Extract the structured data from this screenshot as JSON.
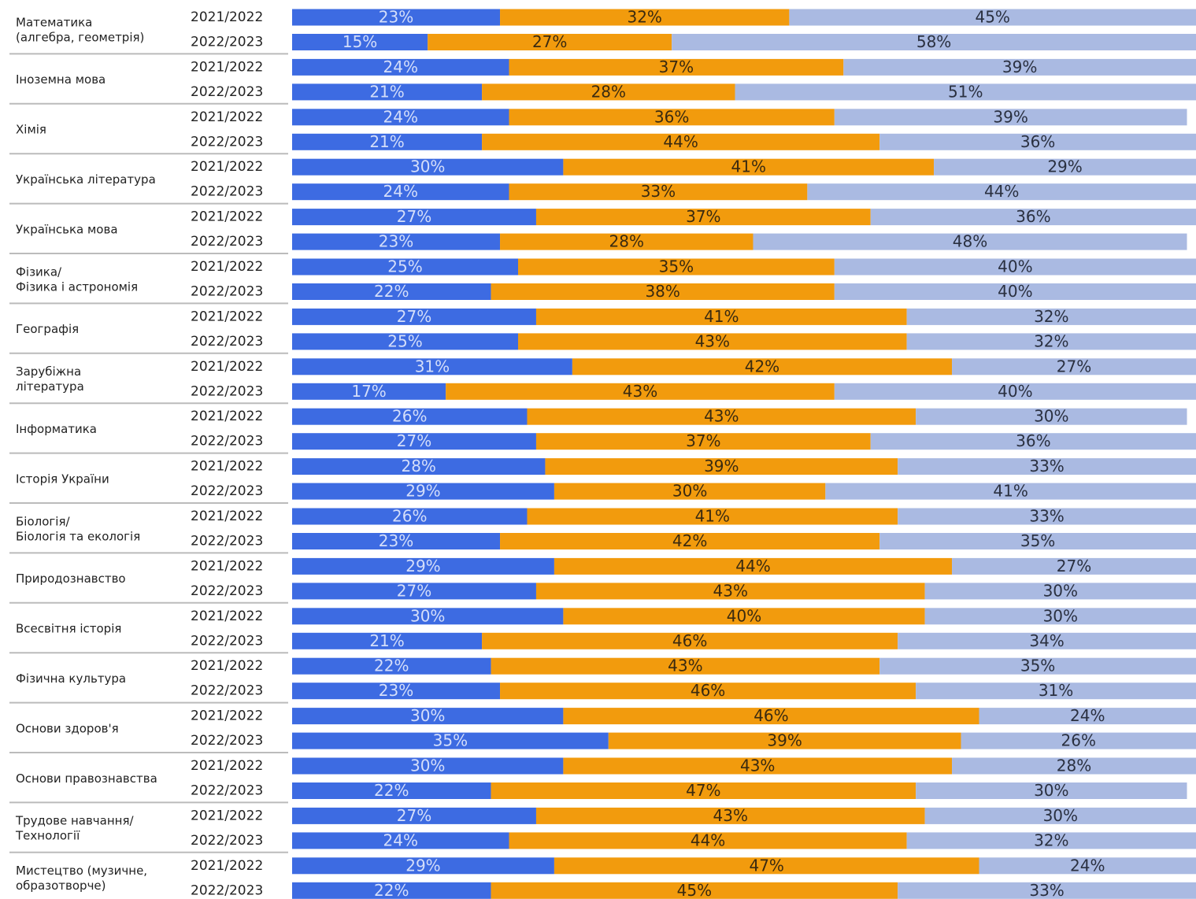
{
  "chart_data": {
    "type": "stacked-bar-horizontal",
    "subjects": [
      [
        "Математика",
        "(алгебра, геометрія)"
      ],
      [
        "Іноземна мова"
      ],
      [
        "Хімія"
      ],
      [
        "Українська література"
      ],
      [
        "Українська мова"
      ],
      [
        "Фізика/",
        "Фізика і астрономія"
      ],
      [
        "Географія"
      ],
      [
        "Зарубіжна",
        "література"
      ],
      [
        "Інформатика"
      ],
      [
        "Історія України"
      ],
      [
        "Біологія/",
        "Біологія та екологія"
      ],
      [
        "Природознавство"
      ],
      [
        "Всесвітня історія"
      ],
      [
        "Фізична культура"
      ],
      [
        "Основи здоров'я"
      ],
      [
        "Основи правознавства"
      ],
      [
        "Трудове навчання/",
        "Технології"
      ],
      [
        "Мистецтво (музичне,",
        "образотворче)"
      ]
    ],
    "periods": [
      "2021/2022",
      "2022/2023"
    ],
    "xlim": [
      0,
      100
    ],
    "series": [
      {
        "color": "#3d6be2",
        "label_color": "#d4defa",
        "values": [
          23,
          15,
          24,
          21,
          24,
          21,
          30,
          24,
          27,
          23,
          25,
          22,
          27,
          25,
          31,
          17,
          26,
          27,
          28,
          29,
          26,
          23,
          29,
          27,
          30,
          21,
          22,
          23,
          30,
          35,
          30,
          22,
          27,
          24,
          29,
          22
        ],
        "value_labels": [
          "23%",
          "15%",
          "24%",
          "21%",
          "24%",
          "21%",
          "30%",
          "24%",
          "27%",
          "23%",
          "25%",
          "22%",
          "27%",
          "25%",
          "31%",
          "17%",
          "26%",
          "27%",
          "28%",
          "29%",
          "26%",
          "23%",
          "29%",
          "27%",
          "30%",
          "21%",
          "22%",
          "23%",
          "30%",
          "35%",
          "30%",
          "22%",
          "27%",
          "24%",
          "29%",
          "22%"
        ]
      },
      {
        "color": "#f29b0d",
        "label_color": "#3a2a10",
        "values": [
          32,
          27,
          37,
          28,
          36,
          44,
          41,
          33,
          37,
          28,
          35,
          38,
          41,
          43,
          42,
          43,
          43,
          37,
          39,
          30,
          41,
          42,
          44,
          43,
          40,
          46,
          43,
          46,
          46,
          39,
          43,
          47,
          43,
          44,
          47,
          45
        ],
        "value_labels": [
          "32%",
          "27%",
          "37%",
          "28%",
          "36%",
          "44%",
          "41%",
          "33%",
          "37%",
          "28%",
          "35%",
          "38%",
          "41%",
          "43%",
          "42%",
          "43%",
          "43%",
          "37%",
          "39%",
          "30%",
          "41%",
          "42%",
          "44%",
          "43%",
          "40%",
          "46%",
          "43%",
          "46%",
          "46%",
          "39%",
          "43%",
          "47%",
          "43%",
          "44%",
          "47%",
          "45%"
        ]
      },
      {
        "color": "#aabae2",
        "label_color": "#2a3040",
        "values": [
          45,
          58,
          39,
          51,
          39,
          36,
          29,
          44,
          36,
          48,
          40,
          40,
          32,
          32,
          27,
          40,
          30,
          36,
          33,
          41,
          33,
          35,
          27,
          30,
          30,
          34,
          35,
          31,
          24,
          26,
          28,
          30,
          30,
          32,
          24,
          33
        ],
        "value_labels": [
          "45%",
          "58%",
          "39%",
          "51%",
          "39%",
          "36%",
          "29%",
          "44%",
          "36%",
          "48%",
          "40%",
          "40%",
          "32%",
          "32%",
          "27%",
          "40%",
          "30%",
          "36%",
          "33%",
          "41%",
          "33%",
          "35%",
          "27%",
          "30%",
          "30%",
          "34%",
          "35%",
          "31%",
          "24%",
          "26%",
          "28%",
          "30%",
          "30%",
          "32%",
          "24%",
          "33%"
        ]
      }
    ]
  }
}
